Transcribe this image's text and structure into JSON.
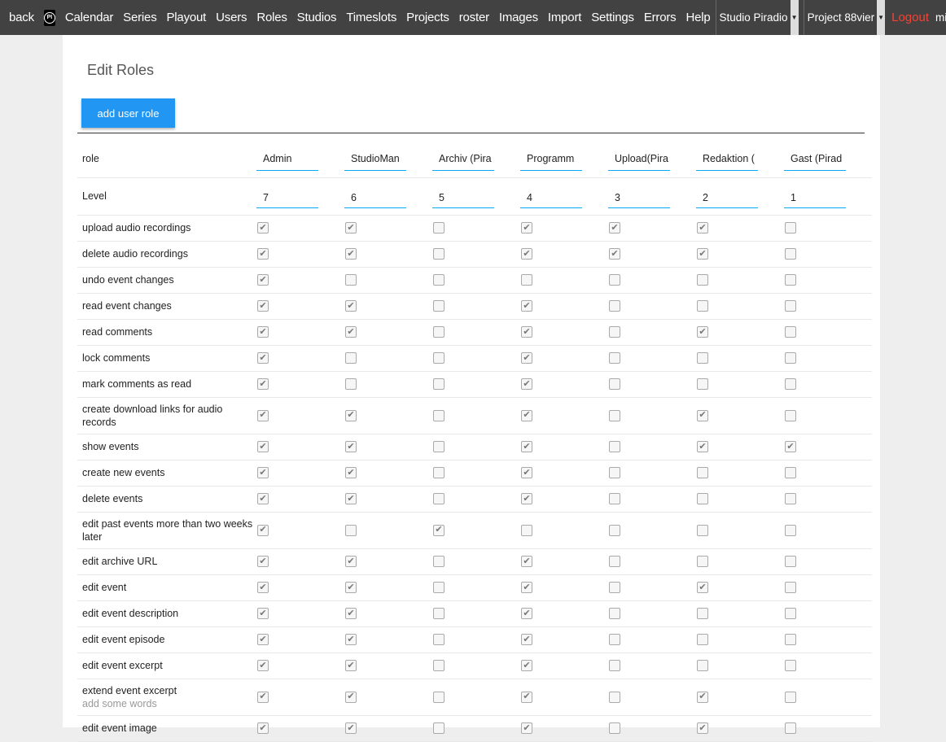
{
  "nav": {
    "items": [
      "back",
      "Calendar",
      "Series",
      "Playout",
      "Users",
      "Roles",
      "Studios",
      "Timeslots",
      "Projects",
      "roster",
      "Images",
      "Import",
      "Settings",
      "Errors",
      "Help"
    ],
    "logo_text": "PI",
    "studio": "Studio Piradio",
    "project": "Project 88vier",
    "logout": "Logout",
    "user": "milan"
  },
  "page": {
    "title": "Edit Roles",
    "add_button": "add user role"
  },
  "table": {
    "role_label": "role",
    "level_label": "Level",
    "roles": [
      "Admin",
      "StudioManager",
      "Archiv (Piradio)",
      "Programm (Piradio)",
      "Upload(Piradio)",
      "Redaktion (Piradio)",
      "Gast (Piradio)"
    ],
    "roles_visible": [
      "Admin",
      "StudioMan",
      "Archiv (Pira",
      "Programm",
      "Upload(Pira",
      "Redaktion (",
      "Gast (Pirad"
    ],
    "levels": [
      "7",
      "6",
      "5",
      "4",
      "3",
      "2",
      "1"
    ],
    "permissions": [
      {
        "label": "upload audio recordings",
        "values": [
          1,
          1,
          0,
          1,
          1,
          1,
          0
        ]
      },
      {
        "label": "delete audio recordings",
        "values": [
          1,
          1,
          0,
          1,
          1,
          1,
          0
        ]
      },
      {
        "label": "undo event changes",
        "values": [
          1,
          0,
          0,
          0,
          0,
          0,
          0
        ]
      },
      {
        "label": "read event changes",
        "values": [
          1,
          1,
          0,
          1,
          0,
          0,
          0
        ]
      },
      {
        "label": "read comments",
        "values": [
          1,
          1,
          0,
          1,
          0,
          1,
          0
        ]
      },
      {
        "label": "lock comments",
        "values": [
          1,
          0,
          0,
          1,
          0,
          0,
          0
        ]
      },
      {
        "label": "mark comments as read",
        "values": [
          1,
          0,
          0,
          1,
          0,
          0,
          0
        ]
      },
      {
        "label": "create download links for audio records",
        "values": [
          1,
          1,
          0,
          1,
          0,
          1,
          0
        ]
      },
      {
        "label": "show events",
        "values": [
          1,
          1,
          0,
          1,
          0,
          1,
          1
        ]
      },
      {
        "label": "create new events",
        "values": [
          1,
          1,
          0,
          1,
          0,
          0,
          0
        ]
      },
      {
        "label": "delete events",
        "values": [
          1,
          1,
          0,
          1,
          0,
          0,
          0
        ]
      },
      {
        "label": "edit past events more than two weeks later",
        "values": [
          1,
          0,
          1,
          0,
          0,
          0,
          0
        ]
      },
      {
        "label": "edit archive URL",
        "values": [
          1,
          1,
          0,
          1,
          0,
          0,
          0
        ]
      },
      {
        "label": "edit event",
        "values": [
          1,
          1,
          0,
          1,
          0,
          1,
          0
        ]
      },
      {
        "label": "edit event description",
        "values": [
          1,
          1,
          0,
          1,
          0,
          0,
          0
        ]
      },
      {
        "label": "edit event episode",
        "values": [
          1,
          1,
          0,
          1,
          0,
          0,
          0
        ]
      },
      {
        "label": "edit event excerpt",
        "values": [
          1,
          1,
          0,
          1,
          0,
          0,
          0
        ]
      },
      {
        "label": "extend event excerpt",
        "sub": "add some words",
        "values": [
          1,
          1,
          0,
          1,
          0,
          1,
          0
        ]
      },
      {
        "label": "edit event image",
        "values": [
          1,
          1,
          0,
          1,
          0,
          1,
          0
        ]
      }
    ]
  },
  "colors": {
    "nav_bg": "#424242",
    "accent": "#2196f3",
    "input_underline": "#03a9f4",
    "logout": "#f44336"
  }
}
